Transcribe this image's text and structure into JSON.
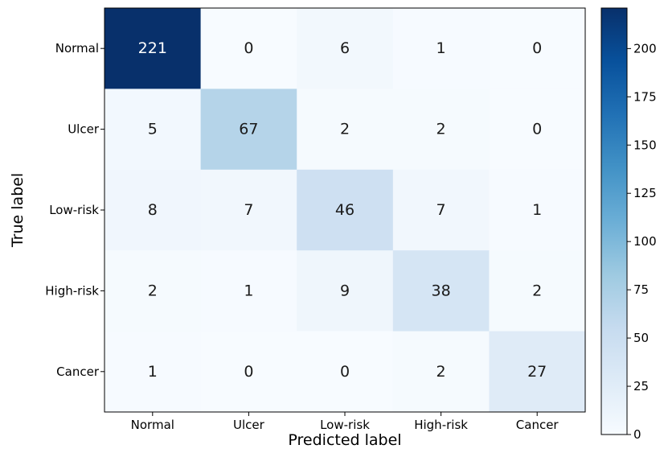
{
  "chart_data": {
    "type": "heatmap",
    "title": "",
    "xlabel": "Predicted label",
    "ylabel": "True label",
    "x_categories": [
      "Normal",
      "Ulcer",
      "Low-risk",
      "High-risk",
      "Cancer"
    ],
    "y_categories": [
      "Normal",
      "Ulcer",
      "Low-risk",
      "High-risk",
      "Cancer"
    ],
    "matrix": [
      [
        221,
        0,
        6,
        1,
        0
      ],
      [
        5,
        67,
        2,
        2,
        0
      ],
      [
        8,
        7,
        46,
        7,
        1
      ],
      [
        2,
        1,
        9,
        38,
        2
      ],
      [
        1,
        0,
        0,
        2,
        27
      ]
    ],
    "colorbar": {
      "range": [
        0,
        221
      ],
      "ticks": [
        0,
        25,
        50,
        75,
        100,
        125,
        150,
        175,
        200
      ],
      "colormap": "Blues"
    }
  }
}
